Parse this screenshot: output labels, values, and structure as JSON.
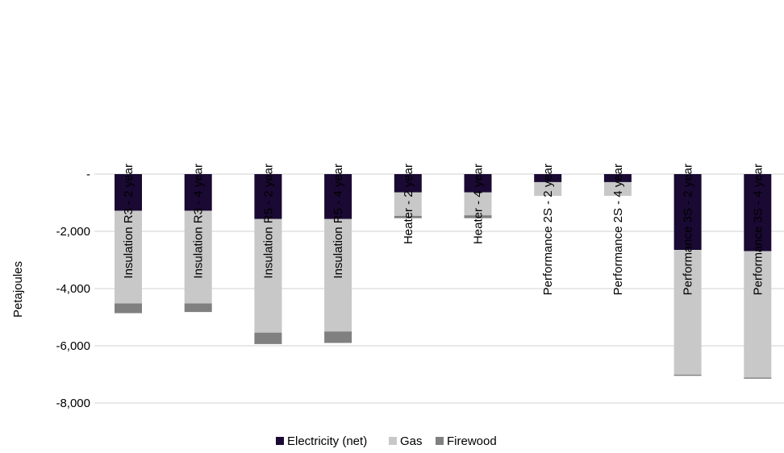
{
  "chart_data": {
    "type": "bar",
    "stacked": true,
    "categories": [
      "Insulation R3 - 2 year",
      "Insulation R3 - 4 year",
      "Insulation R5 - 2 year",
      "Insulation R5 - 4 year",
      "Heater - 2 year",
      "Heater - 4 year",
      "Performance 2S - 2 year",
      "Performance 2S - 4 year",
      "Performance 3S - 2 year",
      "Performance 3S - 4 year"
    ],
    "series": [
      {
        "name": "Electricity (net)",
        "color": "#1a0933",
        "values": [
          -1280,
          -1280,
          -1570,
          -1570,
          -640,
          -640,
          -280,
          -280,
          -2650,
          -2690
        ]
      },
      {
        "name": "Gas",
        "color": "#c8c8c8",
        "values": [
          -3240,
          -3240,
          -3970,
          -3930,
          -820,
          -800,
          -480,
          -480,
          -4360,
          -4420
        ]
      },
      {
        "name": "Firewood",
        "color": "#808080",
        "values": [
          -340,
          -300,
          -400,
          -400,
          -80,
          -100,
          0,
          0,
          -40,
          -40
        ]
      }
    ],
    "xlabel": "",
    "ylabel": "Petajoules",
    "ylim": [
      -8000,
      0
    ],
    "yticks": [
      0,
      -2000,
      -4000,
      -6000,
      -8000
    ],
    "ytick_labels": [
      "-",
      "-2,000",
      "-4,000",
      "-6,000",
      "-8,000"
    ],
    "grid": true,
    "legend": "bottom"
  }
}
